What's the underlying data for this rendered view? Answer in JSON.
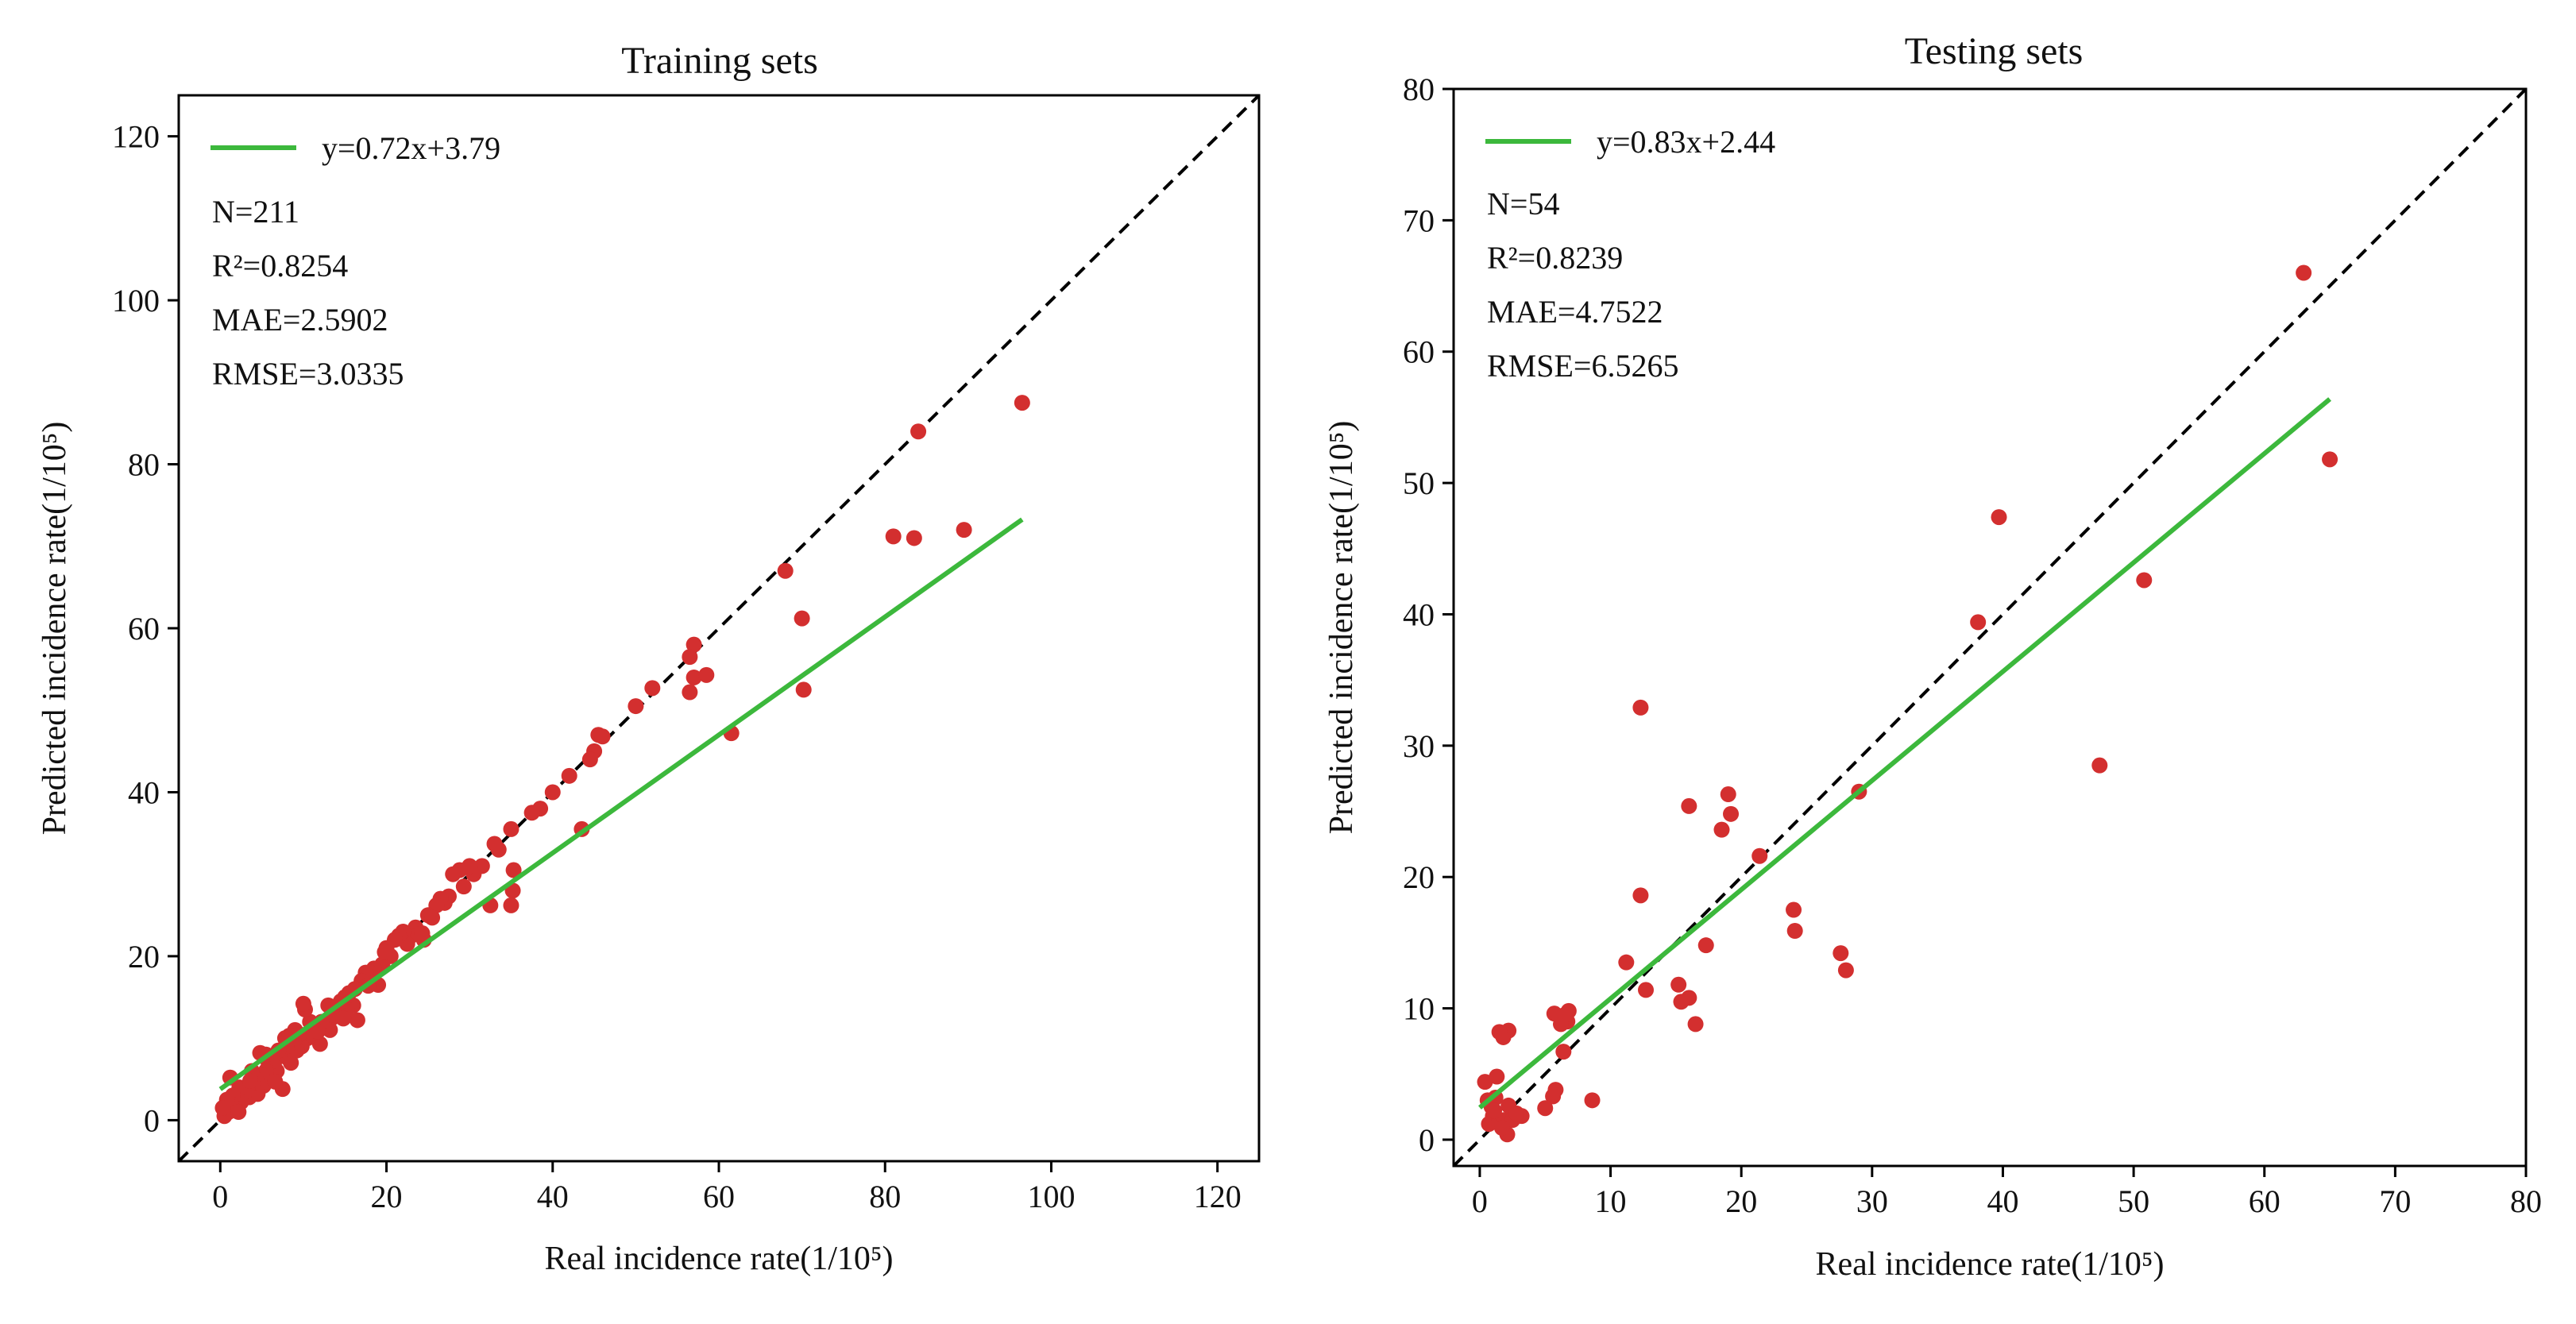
{
  "colors": {
    "point": "#d32f2f",
    "fit": "#3cb83c",
    "identity": "#000000",
    "frame": "#000000"
  },
  "chart_data": [
    {
      "type": "scatter",
      "title": "Training sets",
      "xlabel": "Real incidence rate(1/10⁵)",
      "ylabel": "Predicted incidence rate(1/10⁵)",
      "xlim": [
        -5,
        125
      ],
      "ylim": [
        -5,
        125
      ],
      "xticks": [
        "0",
        "20",
        "40",
        "60",
        "80",
        "100",
        "120"
      ],
      "yticks": [
        "0",
        "20",
        "40",
        "60",
        "80",
        "100",
        "120"
      ],
      "legend": "y=0.72x+3.79",
      "fit": {
        "slope": 0.72,
        "intercept": 3.79,
        "x_range": [
          0,
          96.5
        ]
      },
      "stats": [
        "N=211",
        "R²=0.8254",
        "MAE=2.5902",
        "RMSE=3.0335"
      ],
      "points": [
        [
          96.5,
          87.5
        ],
        [
          84,
          84
        ],
        [
          89.5,
          72
        ],
        [
          83.5,
          71
        ],
        [
          81,
          71.2
        ],
        [
          70,
          61.2
        ],
        [
          70.2,
          52.5
        ],
        [
          68,
          67
        ],
        [
          61.5,
          47.2
        ],
        [
          57,
          58
        ],
        [
          56.5,
          56.5
        ],
        [
          57,
          54
        ],
        [
          58.5,
          54.3
        ],
        [
          56.5,
          52.2
        ],
        [
          52,
          52.7
        ],
        [
          50,
          50.5
        ],
        [
          45.5,
          47
        ],
        [
          46,
          46.8
        ],
        [
          45,
          45
        ],
        [
          44.5,
          44
        ],
        [
          43.5,
          35.5
        ],
        [
          42,
          42
        ],
        [
          40,
          40
        ],
        [
          38.5,
          38
        ],
        [
          37.5,
          37.5
        ],
        [
          35,
          35.5
        ],
        [
          35.3,
          30.5
        ],
        [
          35.2,
          28
        ],
        [
          35,
          26.2
        ],
        [
          33.5,
          33
        ],
        [
          33,
          33.7
        ],
        [
          32.5,
          26.2
        ],
        [
          31.5,
          31
        ],
        [
          30.5,
          30
        ],
        [
          30,
          31
        ],
        [
          29.3,
          28.5
        ],
        [
          28.8,
          30.5
        ],
        [
          28,
          30
        ],
        [
          27.5,
          27.3
        ],
        [
          27,
          26.5
        ],
        [
          26.5,
          27
        ],
        [
          26,
          26.2
        ],
        [
          25,
          25
        ],
        [
          24.5,
          22
        ],
        [
          23.5,
          23.5
        ],
        [
          23,
          22.5
        ],
        [
          22.5,
          21.5
        ],
        [
          22,
          23
        ],
        [
          21.5,
          22.5
        ],
        [
          21,
          22
        ],
        [
          20.5,
          20
        ],
        [
          20,
          21
        ],
        [
          19.5,
          19
        ],
        [
          19,
          16.5
        ],
        [
          18.5,
          18.5
        ],
        [
          18,
          18
        ],
        [
          17.5,
          18
        ],
        [
          17,
          17
        ],
        [
          16.5,
          12.2
        ],
        [
          16.2,
          16
        ],
        [
          16,
          14
        ],
        [
          15.5,
          15.5
        ],
        [
          15.2,
          13.5
        ],
        [
          15,
          15
        ],
        [
          14.5,
          14.5
        ],
        [
          14,
          13
        ],
        [
          13.5,
          12.5
        ],
        [
          13.2,
          11
        ],
        [
          13,
          14
        ],
        [
          12.5,
          11.5
        ],
        [
          12.2,
          12
        ],
        [
          12,
          9.3
        ],
        [
          11.5,
          11
        ],
        [
          11,
          10.5
        ],
        [
          10.8,
          12
        ],
        [
          10.5,
          10
        ],
        [
          10.2,
          13.5
        ],
        [
          10,
          14.2
        ],
        [
          9.8,
          9
        ],
        [
          9.5,
          10.5
        ],
        [
          9.2,
          8.5
        ],
        [
          9,
          11
        ],
        [
          8.8,
          9.5
        ],
        [
          8.5,
          7
        ],
        [
          8.2,
          7.5
        ],
        [
          8,
          9
        ],
        [
          7.8,
          10
        ],
        [
          7.5,
          3.8
        ],
        [
          7.2,
          7.8
        ],
        [
          7,
          8.5
        ],
        [
          6.8,
          6
        ],
        [
          6.5,
          6.5
        ],
        [
          6.2,
          7.5
        ],
        [
          6,
          5.5
        ],
        [
          5.8,
          7
        ],
        [
          5.5,
          6
        ],
        [
          5.2,
          4.2
        ],
        [
          5,
          5.5
        ],
        [
          4.8,
          8.2
        ],
        [
          4.5,
          3.2
        ],
        [
          4.3,
          5
        ],
        [
          4,
          4.5
        ],
        [
          3.8,
          6
        ],
        [
          3.5,
          2.8
        ],
        [
          3.3,
          4
        ],
        [
          3,
          3.5
        ],
        [
          2.8,
          3
        ],
        [
          2.5,
          2.2
        ],
        [
          2.3,
          4
        ],
        [
          2,
          2.5
        ],
        [
          1.8,
          1.5
        ],
        [
          1.5,
          3
        ],
        [
          1.3,
          2
        ],
        [
          1.2,
          5.2
        ],
        [
          1,
          1
        ],
        [
          0.8,
          2.5
        ],
        [
          0.5,
          0.5
        ],
        [
          0.3,
          1.5
        ],
        [
          2.2,
          1
        ],
        [
          3.6,
          4.8
        ],
        [
          5.5,
          8
        ],
        [
          6.6,
          4.7
        ],
        [
          8.3,
          10.3
        ],
        [
          11.7,
          10.8
        ],
        [
          14.8,
          12.4
        ],
        [
          17.8,
          16.4
        ],
        [
          19.8,
          20.5
        ],
        [
          24.3,
          22.8
        ],
        [
          25.5,
          24.7
        ]
      ]
    },
    {
      "type": "scatter",
      "title": "Testing sets",
      "xlabel": "Real incidence rate(1/10⁵)",
      "ylabel": "Predicted incidence rate(1/10⁵)",
      "xlim": [
        -2,
        80
      ],
      "ylim": [
        -2,
        80
      ],
      "xticks": [
        "0",
        "10",
        "20",
        "30",
        "40",
        "50",
        "60",
        "70",
        "80"
      ],
      "yticks": [
        "0",
        "10",
        "20",
        "30",
        "40",
        "50",
        "60",
        "70",
        "80"
      ],
      "legend": "y=0.83x+2.44",
      "fit": {
        "slope": 0.83,
        "intercept": 2.44,
        "x_range": [
          0,
          65
        ]
      },
      "stats": [
        "N=54",
        "R²=0.8239",
        "MAE=4.7522",
        "RMSE=6.5265"
      ],
      "points": [
        [
          63,
          66
        ],
        [
          65,
          51.8
        ],
        [
          50.8,
          42.6
        ],
        [
          47.4,
          28.5
        ],
        [
          39.7,
          47.4
        ],
        [
          38.1,
          39.4
        ],
        [
          29,
          26.5
        ],
        [
          28,
          12.9
        ],
        [
          27.6,
          14.2
        ],
        [
          24,
          17.5
        ],
        [
          24.1,
          15.9
        ],
        [
          21.4,
          21.6
        ],
        [
          19,
          26.3
        ],
        [
          19.2,
          24.8
        ],
        [
          18.5,
          23.6
        ],
        [
          16,
          25.4
        ],
        [
          17.3,
          14.8
        ],
        [
          16,
          10.8
        ],
        [
          16.5,
          8.8
        ],
        [
          15.4,
          10.5
        ],
        [
          15.2,
          11.8
        ],
        [
          12.3,
          32.9
        ],
        [
          12.3,
          18.6
        ],
        [
          12.7,
          11.4
        ],
        [
          11.2,
          13.5
        ],
        [
          8.6,
          3
        ],
        [
          6.8,
          9.8
        ],
        [
          6.7,
          9
        ],
        [
          6.5,
          9.5
        ],
        [
          6.2,
          8.8
        ],
        [
          6.4,
          6.7
        ],
        [
          5.7,
          9.6
        ],
        [
          5.8,
          3.8
        ],
        [
          5.6,
          3.3
        ],
        [
          5,
          2.4
        ],
        [
          3.2,
          1.8
        ],
        [
          2.2,
          8.3
        ],
        [
          1.8,
          7.8
        ],
        [
          1.5,
          8.2
        ],
        [
          1.3,
          4.8
        ],
        [
          1.2,
          3.2
        ],
        [
          0.4,
          4.4
        ],
        [
          0.6,
          3
        ],
        [
          1,
          1.8
        ],
        [
          0.9,
          2.5
        ],
        [
          0.7,
          1.2
        ],
        [
          1.5,
          1.5
        ],
        [
          2.1,
          0.4
        ],
        [
          1.9,
          1.5
        ],
        [
          2.5,
          1.5
        ],
        [
          1.1,
          2.2
        ],
        [
          2.2,
          2.6
        ],
        [
          1.7,
          0.9
        ],
        [
          2.8,
          2
        ]
      ]
    }
  ]
}
